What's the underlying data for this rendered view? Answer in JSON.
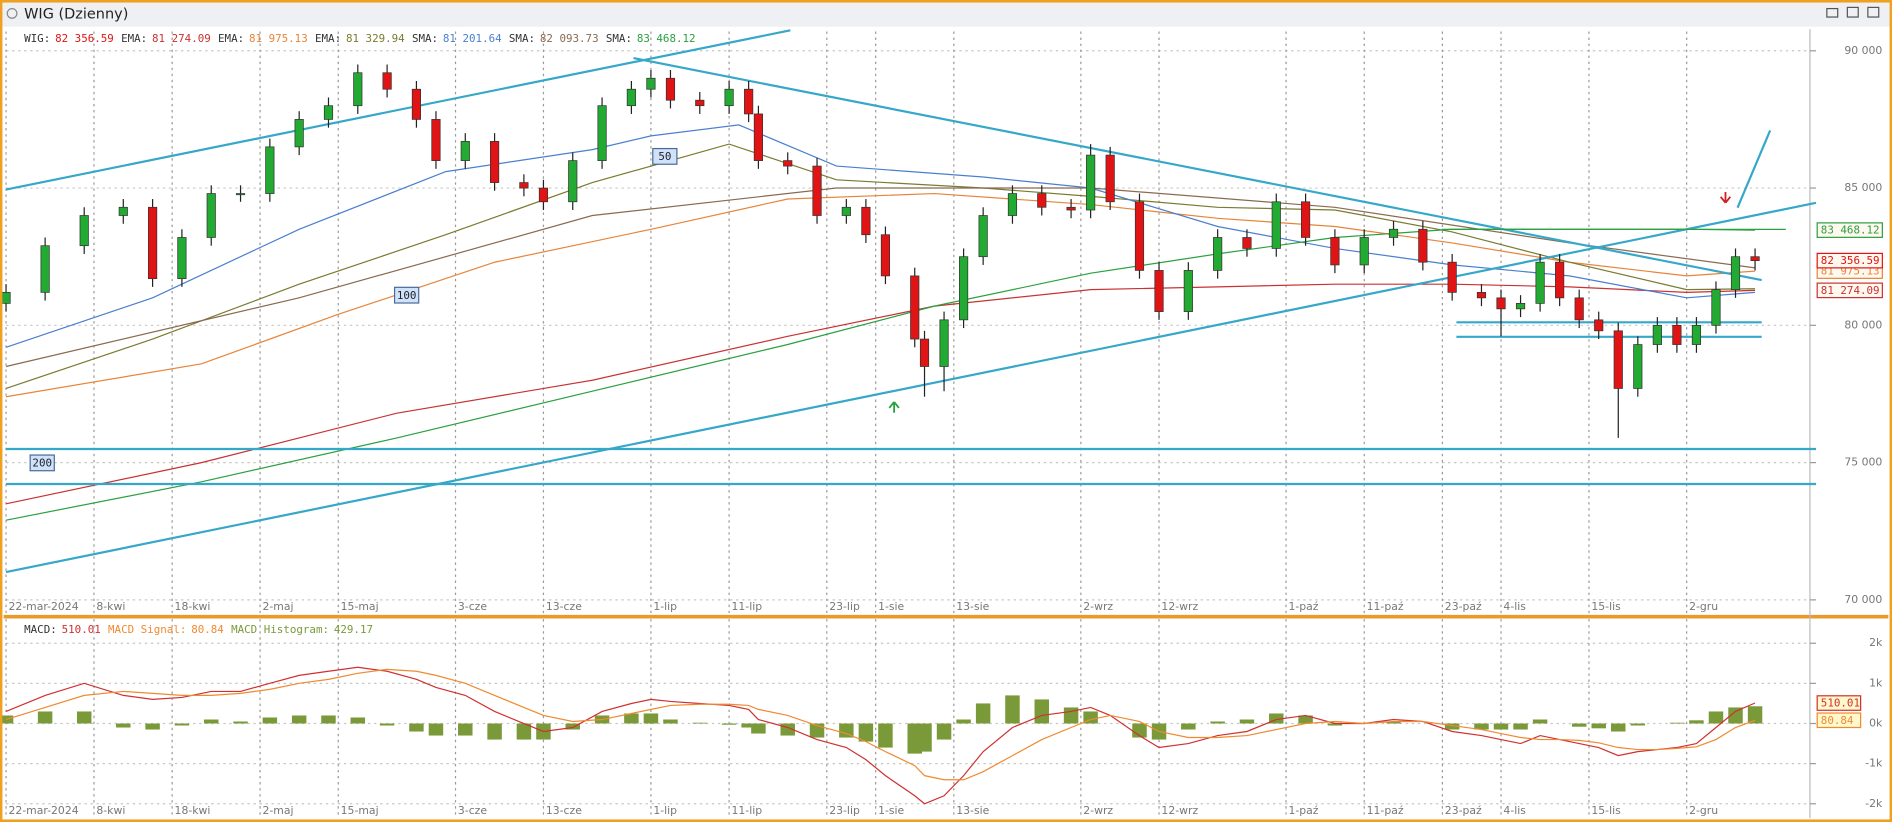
{
  "window": {
    "title": "WIG (Dzienny)"
  },
  "chart_data": [
    {
      "type": "candlestick",
      "symbol": "WIG:",
      "symbol_value": 82356.59,
      "symbol_label": "82 356.59",
      "up_color": "#22aa33",
      "down_color": "#e01414",
      "grid": true,
      "xlim": [
        0,
        184
      ],
      "ylim": [
        69518,
        90614
      ],
      "xticks": [
        {
          "value": 0,
          "label": "22-mar-2024"
        },
        {
          "value": 9,
          "label": "8-kwi"
        },
        {
          "value": 17,
          "label": "18-kwi"
        },
        {
          "value": 26,
          "label": "2-maj"
        },
        {
          "value": 34,
          "label": "15-maj"
        },
        {
          "value": 46,
          "label": "3-cze"
        },
        {
          "value": 55,
          "label": "13-cze"
        },
        {
          "value": 66,
          "label": "1-lip"
        },
        {
          "value": 74,
          "label": "11-lip"
        },
        {
          "value": 84,
          "label": "23-lip"
        },
        {
          "value": 89,
          "label": "1-sie"
        },
        {
          "value": 97,
          "label": "13-sie"
        },
        {
          "value": 110,
          "label": "2-wrz"
        },
        {
          "value": 118,
          "label": "12-wrz"
        },
        {
          "value": 131,
          "label": "1-paź"
        },
        {
          "value": 139,
          "label": "11-paź"
        },
        {
          "value": 147,
          "label": "23-paź"
        },
        {
          "value": 153,
          "label": "4-lis"
        },
        {
          "value": 162,
          "label": "15-lis"
        },
        {
          "value": 172,
          "label": "2-gru"
        }
      ],
      "yticks": [
        {
          "value": 70000,
          "label": "70 000"
        },
        {
          "value": 75000,
          "label": "75 000"
        },
        {
          "value": 80000,
          "label": "80 000"
        },
        {
          "value": 85000,
          "label": "85 000"
        },
        {
          "value": 90000,
          "label": "90 000"
        }
      ],
      "x": [
        0,
        4,
        8,
        12,
        15,
        18,
        21,
        24,
        27,
        30,
        33,
        36,
        39,
        42,
        44,
        47,
        50,
        53,
        55,
        58,
        61,
        64,
        66,
        68,
        71,
        74,
        76,
        77,
        80,
        83,
        86,
        88,
        90,
        93,
        94,
        96,
        98,
        100,
        103,
        106,
        109,
        111,
        113,
        116,
        118,
        121,
        124,
        127,
        130,
        133,
        136,
        139,
        142,
        145,
        148,
        151,
        153,
        155,
        157,
        159,
        161,
        163,
        165,
        167,
        169,
        171,
        173,
        175,
        177,
        179
      ],
      "open": [
        80800,
        81200,
        82900,
        84000,
        84300,
        81700,
        83200,
        84800,
        84800,
        86500,
        87500,
        88000,
        89200,
        88600,
        87500,
        86000,
        86700,
        85200,
        85000,
        84500,
        86000,
        88000,
        88600,
        89000,
        88200,
        88000,
        88600,
        87700,
        86000,
        85800,
        84000,
        84300,
        83300,
        81800,
        79500,
        78500,
        80200,
        82500,
        84000,
        84800,
        84300,
        84200,
        86200,
        84500,
        82000,
        80500,
        82000,
        83200,
        82800,
        84500,
        83200,
        82200,
        83200,
        83500,
        82300,
        81200,
        81000,
        80600,
        80800,
        82300,
        81000,
        80200,
        79800,
        77700,
        79300,
        80000,
        79300,
        80000,
        81300,
        82500
      ],
      "high": [
        81500,
        83200,
        84300,
        84600,
        84600,
        83500,
        85100,
        85100,
        86800,
        87800,
        88300,
        89500,
        89500,
        88900,
        87800,
        87000,
        87000,
        85500,
        85300,
        86300,
        88300,
        88900,
        89300,
        89300,
        88500,
        88900,
        88900,
        88000,
        86300,
        86100,
        84600,
        84600,
        83600,
        82100,
        79800,
        80500,
        82800,
        84300,
        85100,
        85100,
        84600,
        86600,
        86500,
        84800,
        82300,
        82300,
        83500,
        83500,
        84800,
        84800,
        83500,
        83500,
        83800,
        83800,
        82600,
        81500,
        81300,
        81100,
        82600,
        82600,
        81300,
        80500,
        80100,
        79600,
        80300,
        80300,
        80300,
        81600,
        82800,
        82800
      ],
      "low": [
        80500,
        80900,
        82600,
        83700,
        81400,
        81400,
        82900,
        84500,
        84500,
        86200,
        87200,
        87700,
        88300,
        87200,
        85700,
        85700,
        84900,
        84700,
        84200,
        84200,
        85700,
        87700,
        88300,
        87900,
        87700,
        87700,
        87400,
        85700,
        85500,
        83700,
        83700,
        83000,
        81500,
        79200,
        77400,
        77600,
        79900,
        82200,
        83700,
        84000,
        83900,
        83900,
        84200,
        81700,
        80200,
        80200,
        81700,
        82500,
        82500,
        82900,
        81900,
        81900,
        82900,
        82000,
        80900,
        80700,
        79600,
        80300,
        80500,
        80700,
        79900,
        79500,
        75900,
        77400,
        79000,
        79000,
        79000,
        79700,
        81000,
        82000
      ],
      "close": [
        81200,
        82900,
        84000,
        84300,
        81700,
        83200,
        84800,
        84800,
        86500,
        87500,
        88000,
        89200,
        88600,
        87500,
        86000,
        86700,
        85200,
        85000,
        84500,
        86000,
        88000,
        88600,
        89000,
        88200,
        88000,
        88600,
        87700,
        86000,
        85800,
        84000,
        84300,
        83300,
        81800,
        79500,
        78500,
        80200,
        82500,
        84000,
        84800,
        84300,
        84200,
        86200,
        84500,
        82000,
        80500,
        82000,
        83200,
        82800,
        84500,
        83200,
        82200,
        83200,
        83500,
        82300,
        81200,
        81000,
        80600,
        80800,
        82300,
        81000,
        80200,
        79800,
        77700,
        79300,
        80000,
        79300,
        80000,
        81300,
        82500,
        82356.59
      ],
      "series": [
        {
          "name": "EMA:",
          "color": "#c83232",
          "last": 81274.09,
          "last_label": "81 274.09",
          "tag": true,
          "x": [
            0,
            20,
            40,
            60,
            80,
            95,
            111,
            124,
            136,
            148,
            160,
            172,
            179
          ],
          "values": [
            73500,
            75000,
            76800,
            78000,
            79600,
            80700,
            81300,
            81400,
            81500,
            81500,
            81400,
            81200,
            81274.09
          ]
        },
        {
          "name": "EMA:",
          "color": "#e8843a",
          "last": 81975.13,
          "last_label": "81 975.13",
          "tag": true,
          "x": [
            0,
            20,
            34,
            50,
            66,
            80,
            95,
            111,
            124,
            136,
            148,
            160,
            172,
            179
          ],
          "values": [
            77400,
            78600,
            80400,
            82300,
            83500,
            84600,
            84800,
            84400,
            83900,
            83600,
            83000,
            82300,
            81800,
            81975.13
          ]
        },
        {
          "name": "EMA:",
          "color": "#7a7a30",
          "last": 81329.94,
          "last_label": "81 329.94",
          "tag": false,
          "x": [
            0,
            15,
            30,
            45,
            60,
            74,
            85,
            100,
            111,
            124,
            136,
            148,
            160,
            172,
            179
          ],
          "values": [
            77700,
            79500,
            81500,
            83300,
            85200,
            86600,
            85300,
            85000,
            84700,
            84300,
            84200,
            83400,
            82300,
            81300,
            81329.94
          ]
        },
        {
          "name": "SMA:",
          "color": "#4a7fd0",
          "last": 81201.64,
          "last_label": "81 201.64",
          "tag": false,
          "x": [
            0,
            15,
            30,
            45,
            60,
            66,
            75,
            85,
            100,
            111,
            124,
            136,
            148,
            160,
            172,
            179
          ],
          "values": [
            79200,
            81000,
            83500,
            85600,
            86400,
            86900,
            87300,
            85800,
            85400,
            85000,
            83600,
            82800,
            82200,
            81800,
            81000,
            81201.64
          ]
        },
        {
          "name": "SMA:",
          "color": "#8a6a50",
          "last": 82093.73,
          "last_label": "82 093.73",
          "tag": false,
          "x": [
            0,
            30,
            60,
            85,
            111,
            136,
            160,
            179
          ],
          "values": [
            78500,
            81000,
            84000,
            85000,
            85000,
            84300,
            83000,
            82093.73
          ]
        },
        {
          "name": "SMA:",
          "color": "#2aa040",
          "last": 83468.12,
          "last_label": "83 468.12",
          "tag": true,
          "x": [
            0,
            20,
            40,
            60,
            80,
            95,
            111,
            124,
            136,
            148,
            160,
            172,
            179
          ],
          "values": [
            72900,
            74300,
            75900,
            77600,
            79300,
            80700,
            81900,
            82600,
            83200,
            83500,
            83500,
            83500,
            83468.12
          ]
        }
      ],
      "annotations": [
        "50",
        "100",
        "200"
      ]
    },
    {
      "type": "macd",
      "grid": true,
      "xlim": [
        0,
        184
      ],
      "ylim": [
        -2270,
        2540
      ],
      "xticks": [
        {
          "value": 0,
          "label": "22-mar-2024"
        },
        {
          "value": 9,
          "label": "8-kwi"
        },
        {
          "value": 17,
          "label": "18-kwi"
        },
        {
          "value": 26,
          "label": "2-maj"
        },
        {
          "value": 34,
          "label": "15-maj"
        },
        {
          "value": 46,
          "label": "3-cze"
        },
        {
          "value": 55,
          "label": "13-cze"
        },
        {
          "value": 66,
          "label": "1-lip"
        },
        {
          "value": 74,
          "label": "11-lip"
        },
        {
          "value": 84,
          "label": "23-lip"
        },
        {
          "value": 89,
          "label": "1-sie"
        },
        {
          "value": 97,
          "label": "13-sie"
        },
        {
          "value": 110,
          "label": "2-wrz"
        },
        {
          "value": 118,
          "label": "12-wrz"
        },
        {
          "value": 131,
          "label": "1-paź"
        },
        {
          "value": 139,
          "label": "11-paź"
        },
        {
          "value": 147,
          "label": "23-paź"
        },
        {
          "value": 153,
          "label": "4-lis"
        },
        {
          "value": 162,
          "label": "15-lis"
        },
        {
          "value": 172,
          "label": "2-gru"
        }
      ],
      "yticks": [
        {
          "value": -2000,
          "label": "-2k"
        },
        {
          "value": -1000,
          "label": "-1k"
        },
        {
          "value": 0,
          "label": "0k"
        },
        {
          "value": 1000,
          "label": "1k"
        },
        {
          "value": 2000,
          "label": "2k"
        }
      ],
      "x": [
        0,
        4,
        8,
        12,
        15,
        18,
        21,
        24,
        27,
        30,
        33,
        36,
        39,
        42,
        44,
        47,
        50,
        53,
        55,
        58,
        61,
        64,
        66,
        68,
        71,
        74,
        76,
        77,
        80,
        83,
        86,
        88,
        90,
        93,
        94,
        96,
        98,
        100,
        103,
        106,
        109,
        111,
        113,
        116,
        118,
        121,
        124,
        127,
        130,
        133,
        136,
        139,
        142,
        145,
        148,
        151,
        153,
        155,
        157,
        159,
        161,
        163,
        165,
        167,
        169,
        171,
        173,
        175,
        177,
        179
      ],
      "series": [
        {
          "name": "MACD Histogram:",
          "color": "#7a9a3a",
          "style": "bar",
          "last": 429.17,
          "values": [
            200,
            300,
            300,
            -100,
            -150,
            -50,
            100,
            50,
            150,
            200,
            200,
            150,
            -50,
            -200,
            -300,
            -300,
            -400,
            -400,
            -400,
            -150,
            200,
            250,
            250,
            100,
            20,
            -30,
            -100,
            -250,
            -300,
            -350,
            -350,
            -450,
            -600,
            -750,
            -700,
            -400,
            100,
            500,
            700,
            600,
            400,
            300,
            0,
            -350,
            -400,
            -150,
            50,
            100,
            250,
            200,
            -50,
            0,
            50,
            0,
            -150,
            -150,
            -150,
            -150,
            100,
            0,
            -80,
            -120,
            -200,
            -50,
            0,
            20,
            80,
            300,
            400,
            429.17
          ]
        },
        {
          "name": "MACD:",
          "color": "#d03030",
          "style": "line",
          "last": 510.01,
          "tag": true,
          "values": [
            300,
            700,
            1000,
            700,
            600,
            650,
            800,
            800,
            1000,
            1200,
            1300,
            1400,
            1300,
            1100,
            900,
            700,
            300,
            0,
            -200,
            -100,
            300,
            500,
            600,
            550,
            500,
            450,
            350,
            100,
            -100,
            -400,
            -600,
            -900,
            -1300,
            -1800,
            -2000,
            -1800,
            -1300,
            -700,
            -100,
            200,
            300,
            400,
            200,
            -300,
            -600,
            -500,
            -300,
            -200,
            100,
            200,
            0,
            0,
            100,
            50,
            -200,
            -300,
            -400,
            -500,
            -300,
            -400,
            -500,
            -600,
            -800,
            -700,
            -650,
            -600,
            -500,
            -100,
            300,
            510.01
          ]
        },
        {
          "name": "MACD Signal:",
          "color": "#f08a30",
          "style": "line",
          "last": 80.84,
          "tag": true,
          "values": [
            100,
            400,
            700,
            800,
            750,
            700,
            700,
            750,
            850,
            1000,
            1100,
            1250,
            1350,
            1300,
            1200,
            1000,
            700,
            400,
            200,
            50,
            100,
            250,
            350,
            450,
            480,
            480,
            450,
            350,
            200,
            -50,
            -250,
            -450,
            -700,
            -1050,
            -1300,
            -1400,
            -1400,
            -1200,
            -800,
            -400,
            -100,
            100,
            200,
            50,
            -200,
            -350,
            -350,
            -300,
            -150,
            0,
            50,
            0,
            50,
            50,
            -50,
            -150,
            -250,
            -350,
            -400,
            -400,
            -420,
            -480,
            -600,
            -650,
            -650,
            -620,
            -580,
            -400,
            -100,
            80.84
          ]
        }
      ]
    }
  ]
}
